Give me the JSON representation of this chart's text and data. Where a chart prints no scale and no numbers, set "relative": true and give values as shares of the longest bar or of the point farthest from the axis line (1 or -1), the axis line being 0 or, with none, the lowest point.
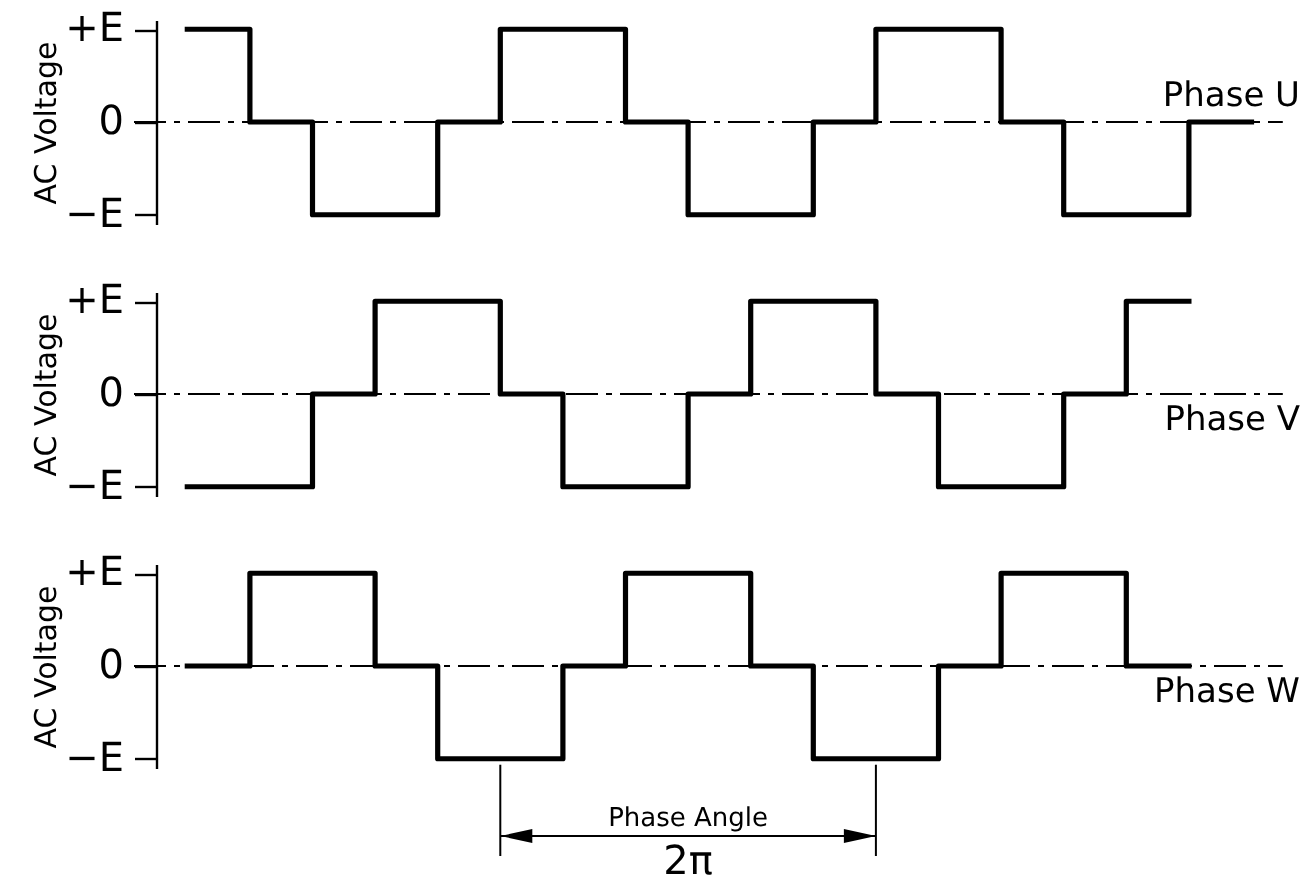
{
  "chart_data": [
    {
      "type": "step",
      "relative": true,
      "ylabel": "AC Voltage",
      "categories": [
        null,
        null,
        null,
        null,
        null,
        null,
        null,
        null,
        null,
        null,
        null,
        null,
        null,
        null,
        null,
        null,
        null,
        null
      ],
      "series": [
        {
          "name": "Phase U",
          "color": "#000000",
          "values": [
            1,
            0,
            -1,
            -1,
            0,
            1,
            1,
            0,
            -1,
            -1,
            0,
            1,
            1,
            0,
            -1,
            -1,
            0,
            0
          ]
        }
      ],
      "annotations": [
        "+E",
        "0",
        "−E"
      ],
      "ref_lines": [
        {
          "axis": "y",
          "value": 0,
          "color": "#000000",
          "line_style": "dashed"
        }
      ],
      "tick_labels": "y",
      "marker": "none",
      "line_style": "solid"
    },
    {
      "type": "step",
      "relative": true,
      "ylabel": "AC Voltage",
      "categories": [
        null,
        null,
        null,
        null,
        null,
        null,
        null,
        null,
        null,
        null,
        null,
        null,
        null,
        null,
        null,
        null,
        null,
        null
      ],
      "series": [
        {
          "name": "Phase V",
          "color": "#000000",
          "values": [
            -1,
            -1,
            0,
            1,
            1,
            0,
            -1,
            -1,
            0,
            1,
            1,
            0,
            -1,
            -1,
            0,
            1,
            1,
            null
          ]
        }
      ],
      "annotations": [
        "+E",
        "0",
        "−E"
      ],
      "ref_lines": [
        {
          "axis": "y",
          "value": 0,
          "color": "#000000",
          "line_style": "dashed"
        }
      ],
      "tick_labels": "y",
      "marker": "none",
      "line_style": "solid"
    },
    {
      "type": "step",
      "relative": true,
      "ylabel": "AC Voltage",
      "categories": [
        null,
        null,
        null,
        null,
        null,
        null,
        null,
        null,
        null,
        null,
        null,
        null,
        null,
        null,
        null,
        null,
        null,
        null
      ],
      "series": [
        {
          "name": "Phase W",
          "color": "#000000",
          "values": [
            0,
            1,
            1,
            0,
            -1,
            -1,
            0,
            1,
            1,
            0,
            -1,
            -1,
            0,
            1,
            1,
            0,
            0,
            null
          ]
        }
      ],
      "annotations": [
        "+E",
        "0",
        "−E",
        "Phase Angle",
        "2π"
      ],
      "ref_lines": [
        {
          "axis": "y",
          "value": 0,
          "color": "#000000",
          "line_style": "dashed"
        }
      ],
      "tick_labels": "y",
      "marker": "none",
      "line_style": "solid"
    }
  ]
}
